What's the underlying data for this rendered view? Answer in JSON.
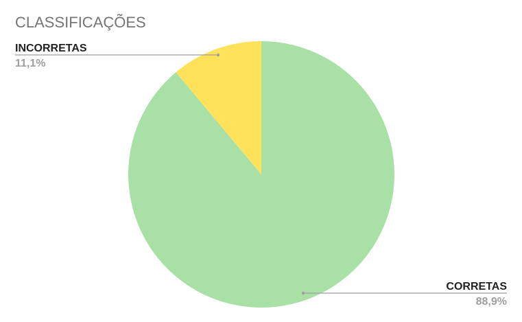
{
  "chart_data": {
    "type": "pie",
    "title": "CLASSIFICAÇÕES",
    "legend": "none",
    "slices": [
      {
        "label": "CORRETAS",
        "value": 88.9,
        "value_label": "88,9%",
        "color": "#a8e0a6"
      },
      {
        "label": "INCORRETAS",
        "value": 11.1,
        "value_label": "11,1%",
        "color": "#ffe15a"
      }
    ]
  }
}
